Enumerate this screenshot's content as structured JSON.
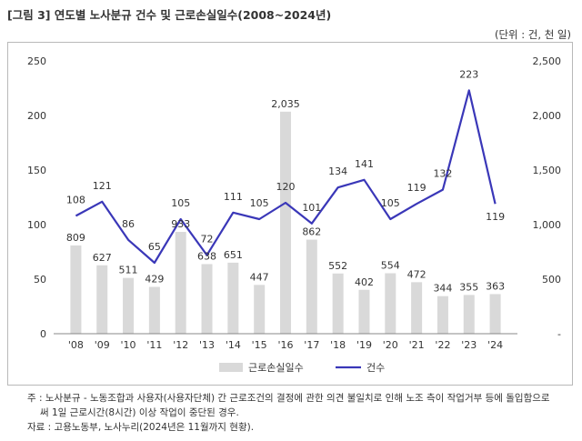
{
  "title": "[그림 3] 연도별 노사분규 건수 및 근로손실일수(2008~2024년)",
  "unit": "(단위 : 건, 천 일)",
  "notes": [
    "주 : 노사분규 - 노동조합과 사용자(사용자단체) 간 근로조건의 결정에 관한 의견 불일치로 인해 노조 측이 작업거부 등에 돌입함으로",
    "써 1일 근로시간(8시간) 이상 작업이 중단된 경우."
  ],
  "source": "자료 : 고용노동부, 노사누리(2024년은 11월까지 현황).",
  "chart_data": {
    "type": "bar",
    "categories": [
      "'08",
      "'09",
      "'10",
      "'11",
      "'12",
      "'13",
      "'14",
      "'15",
      "'16",
      "'17",
      "'18",
      "'19",
      "'20",
      "'21",
      "'22",
      "'23",
      "'24"
    ],
    "series": [
      {
        "name": "근로손실일수",
        "type": "bar",
        "axis": "right",
        "color": "#d9d9d9",
        "values": [
          809,
          627,
          511,
          429,
          933,
          638,
          651,
          447,
          2035,
          862,
          552,
          402,
          554,
          472,
          344,
          355,
          363
        ]
      },
      {
        "name": "건수",
        "type": "line",
        "axis": "left",
        "color": "#3a37b8",
        "values": [
          108,
          121,
          86,
          65,
          105,
          72,
          111,
          105,
          120,
          101,
          134,
          141,
          105,
          119,
          132,
          223,
          119
        ]
      }
    ],
    "left_axis": {
      "ylim": [
        0,
        250
      ],
      "ticks": [
        "0",
        "50",
        "100",
        "150",
        "200",
        "250"
      ]
    },
    "right_axis": {
      "ylim": [
        0,
        2500
      ],
      "ticks": [
        "-",
        "500",
        "1,000",
        "1,500",
        "2,000",
        "2,500"
      ]
    },
    "grid": false,
    "legend_position": "bottom"
  }
}
